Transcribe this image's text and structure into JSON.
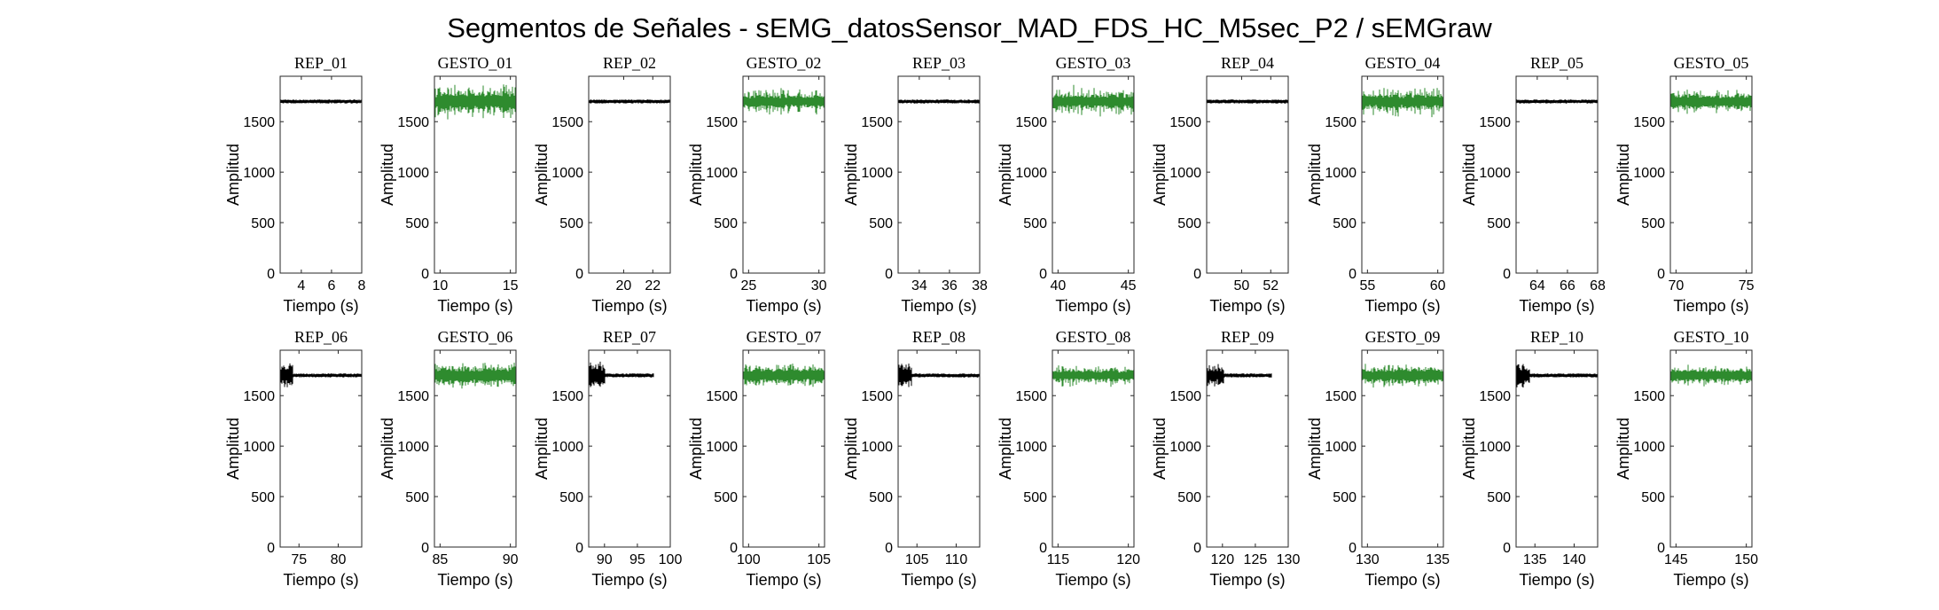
{
  "figure": {
    "title": "Segmentos de Señales - sEMG_datosSensor_MAD_FDS_HC_M5sec_P2 / sEMGraw"
  },
  "chart_data": [
    {
      "type": "line",
      "title": "REP_01",
      "xlabel": "Tiempo (s)",
      "ylabel": "Amplitud",
      "xlim": [
        2.6,
        8
      ],
      "ylim": [
        0,
        1950
      ],
      "xticks": [
        4,
        6,
        8
      ],
      "yticks": [
        0,
        500,
        1000,
        1500
      ],
      "color": "#000000",
      "baseline": 1700,
      "amplitude": [
        20,
        20
      ],
      "burst": null
    },
    {
      "type": "line",
      "title": "GESTO_01",
      "xlabel": "Tiempo (s)",
      "ylabel": "Amplitud",
      "xlim": [
        9.6,
        15.4
      ],
      "ylim": [
        0,
        1950
      ],
      "xticks": [
        10,
        15
      ],
      "yticks": [
        0,
        500,
        1000,
        1500
      ],
      "color": "#2e8b2e",
      "baseline": 1700,
      "amplitude": [
        75,
        185
      ],
      "burst": null
    },
    {
      "type": "line",
      "title": "REP_02",
      "xlabel": "Tiempo (s)",
      "ylabel": "Amplitud",
      "xlim": [
        17.6,
        23.2
      ],
      "ylim": [
        0,
        1950
      ],
      "xticks": [
        20,
        22
      ],
      "yticks": [
        0,
        500,
        1000,
        1500
      ],
      "color": "#000000",
      "baseline": 1700,
      "amplitude": [
        20,
        20
      ],
      "burst": null
    },
    {
      "type": "line",
      "title": "GESTO_02",
      "xlabel": "Tiempo (s)",
      "ylabel": "Amplitud",
      "xlim": [
        24.6,
        30.4
      ],
      "ylim": [
        0,
        1950
      ],
      "xticks": [
        25,
        30
      ],
      "yticks": [
        0,
        500,
        1000,
        1500
      ],
      "color": "#2e8b2e",
      "baseline": 1700,
      "amplitude": [
        55,
        140
      ],
      "burst": null
    },
    {
      "type": "line",
      "title": "REP_03",
      "xlabel": "Tiempo (s)",
      "ylabel": "Amplitud",
      "xlim": [
        32.6,
        38
      ],
      "ylim": [
        0,
        1950
      ],
      "xticks": [
        34,
        36,
        38
      ],
      "yticks": [
        0,
        500,
        1000,
        1500
      ],
      "color": "#000000",
      "baseline": 1700,
      "amplitude": [
        20,
        20
      ],
      "burst": null
    },
    {
      "type": "line",
      "title": "GESTO_03",
      "xlabel": "Tiempo (s)",
      "ylabel": "Amplitud",
      "xlim": [
        39.6,
        45.4
      ],
      "ylim": [
        0,
        1950
      ],
      "xticks": [
        40,
        45
      ],
      "yticks": [
        0,
        500,
        1000,
        1500
      ],
      "color": "#2e8b2e",
      "baseline": 1700,
      "amplitude": [
        60,
        170
      ],
      "burst": null
    },
    {
      "type": "line",
      "title": "REP_04",
      "xlabel": "Tiempo (s)",
      "ylabel": "Amplitud",
      "xlim": [
        47.6,
        53.2
      ],
      "ylim": [
        0,
        1950
      ],
      "xticks": [
        50,
        52
      ],
      "yticks": [
        0,
        500,
        1000,
        1500
      ],
      "color": "#000000",
      "baseline": 1700,
      "amplitude": [
        20,
        20
      ],
      "burst": null
    },
    {
      "type": "line",
      "title": "GESTO_04",
      "xlabel": "Tiempo (s)",
      "ylabel": "Amplitud",
      "xlim": [
        54.6,
        60.4
      ],
      "ylim": [
        0,
        1950
      ],
      "xticks": [
        55,
        60
      ],
      "yticks": [
        0,
        500,
        1000,
        1500
      ],
      "color": "#2e8b2e",
      "baseline": 1700,
      "amplitude": [
        60,
        170
      ],
      "burst": null
    },
    {
      "type": "line",
      "title": "REP_05",
      "xlabel": "Tiempo (s)",
      "ylabel": "Amplitud",
      "xlim": [
        62.6,
        68
      ],
      "ylim": [
        0,
        1950
      ],
      "xticks": [
        64,
        66,
        68
      ],
      "yticks": [
        0,
        500,
        1000,
        1500
      ],
      "color": "#000000",
      "baseline": 1700,
      "amplitude": [
        20,
        20
      ],
      "burst": null
    },
    {
      "type": "line",
      "title": "GESTO_05",
      "xlabel": "Tiempo (s)",
      "ylabel": "Amplitud",
      "xlim": [
        69.6,
        75.4
      ],
      "ylim": [
        0,
        1950
      ],
      "xticks": [
        70,
        75
      ],
      "yticks": [
        0,
        500,
        1000,
        1500
      ],
      "color": "#2e8b2e",
      "baseline": 1700,
      "amplitude": [
        60,
        140
      ],
      "burst": null
    },
    {
      "type": "line",
      "title": "REP_06",
      "xlabel": "Tiempo (s)",
      "ylabel": "Amplitud",
      "xlim": [
        72.6,
        83
      ],
      "ylim": [
        0,
        1950
      ],
      "xticks": [
        75,
        80
      ],
      "yticks": [
        0,
        500,
        1000,
        1500
      ],
      "color": "#000000",
      "baseline": 1700,
      "amplitude": [
        20,
        20
      ],
      "burst": [
        72.6,
        74.2,
        140
      ]
    },
    {
      "type": "line",
      "title": "GESTO_06",
      "xlabel": "Tiempo (s)",
      "ylabel": "Amplitud",
      "xlim": [
        84.6,
        90.4
      ],
      "ylim": [
        0,
        1950
      ],
      "xticks": [
        85,
        90
      ],
      "yticks": [
        0,
        500,
        1000,
        1500
      ],
      "color": "#2e8b2e",
      "baseline": 1700,
      "amplitude": [
        70,
        140
      ],
      "burst": null
    },
    {
      "type": "line",
      "title": "REP_07",
      "xlabel": "Tiempo (s)",
      "ylabel": "Amplitud",
      "xlim": [
        87.6,
        100
      ],
      "ylim": [
        0,
        1950
      ],
      "xticks": [
        90,
        95,
        100
      ],
      "yticks": [
        0,
        500,
        1000,
        1500
      ],
      "color": "#000000",
      "baseline": 1700,
      "amplitude": [
        20,
        20
      ],
      "burst": [
        87.6,
        90.1,
        160
      ],
      "data_end": 97.5
    },
    {
      "type": "line",
      "title": "GESTO_07",
      "xlabel": "Tiempo (s)",
      "ylabel": "Amplitud",
      "xlim": [
        99.6,
        105.4
      ],
      "ylim": [
        0,
        1950
      ],
      "xticks": [
        100,
        105
      ],
      "yticks": [
        0,
        500,
        1000,
        1500
      ],
      "color": "#2e8b2e",
      "baseline": 1700,
      "amplitude": [
        60,
        130
      ],
      "burst": null
    },
    {
      "type": "line",
      "title": "REP_08",
      "xlabel": "Tiempo (s)",
      "ylabel": "Amplitud",
      "xlim": [
        102.6,
        113
      ],
      "ylim": [
        0,
        1950
      ],
      "xticks": [
        105,
        110
      ],
      "yticks": [
        0,
        500,
        1000,
        1500
      ],
      "color": "#000000",
      "baseline": 1700,
      "amplitude": [
        20,
        20
      ],
      "burst": [
        102.6,
        104.4,
        140
      ]
    },
    {
      "type": "line",
      "title": "GESTO_08",
      "xlabel": "Tiempo (s)",
      "ylabel": "Amplitud",
      "xlim": [
        114.6,
        120.4
      ],
      "ylim": [
        0,
        1950
      ],
      "xticks": [
        115,
        120
      ],
      "yticks": [
        0,
        500,
        1000,
        1500
      ],
      "color": "#2e8b2e",
      "baseline": 1700,
      "amplitude": [
        50,
        120
      ],
      "burst": null
    },
    {
      "type": "line",
      "title": "REP_09",
      "xlabel": "Tiempo (s)",
      "ylabel": "Amplitud",
      "xlim": [
        117.6,
        130
      ],
      "ylim": [
        0,
        1950
      ],
      "xticks": [
        120,
        125,
        130
      ],
      "yticks": [
        0,
        500,
        1000,
        1500
      ],
      "color": "#000000",
      "baseline": 1700,
      "amplitude": [
        20,
        20
      ],
      "burst": [
        117.6,
        120.2,
        130
      ],
      "data_end": 127.5
    },
    {
      "type": "line",
      "title": "GESTO_09",
      "xlabel": "Tiempo (s)",
      "ylabel": "Amplitud",
      "xlim": [
        129.6,
        135.4
      ],
      "ylim": [
        0,
        1950
      ],
      "xticks": [
        130,
        135
      ],
      "yticks": [
        0,
        500,
        1000,
        1500
      ],
      "color": "#2e8b2e",
      "baseline": 1700,
      "amplitude": [
        60,
        130
      ],
      "burst": null
    },
    {
      "type": "line",
      "title": "REP_10",
      "xlabel": "Tiempo (s)",
      "ylabel": "Amplitud",
      "xlim": [
        132.6,
        143
      ],
      "ylim": [
        0,
        1950
      ],
      "xticks": [
        135,
        140
      ],
      "yticks": [
        0,
        500,
        1000,
        1500
      ],
      "color": "#000000",
      "baseline": 1700,
      "amplitude": [
        20,
        20
      ],
      "burst": [
        132.6,
        134.4,
        130
      ]
    },
    {
      "type": "line",
      "title": "GESTO_10",
      "xlabel": "Tiempo (s)",
      "ylabel": "Amplitud",
      "xlim": [
        144.6,
        150.4
      ],
      "ylim": [
        0,
        1950
      ],
      "xticks": [
        145,
        150
      ],
      "yticks": [
        0,
        500,
        1000,
        1500
      ],
      "color": "#2e8b2e",
      "baseline": 1700,
      "amplitude": [
        55,
        110
      ],
      "burst": null
    }
  ]
}
